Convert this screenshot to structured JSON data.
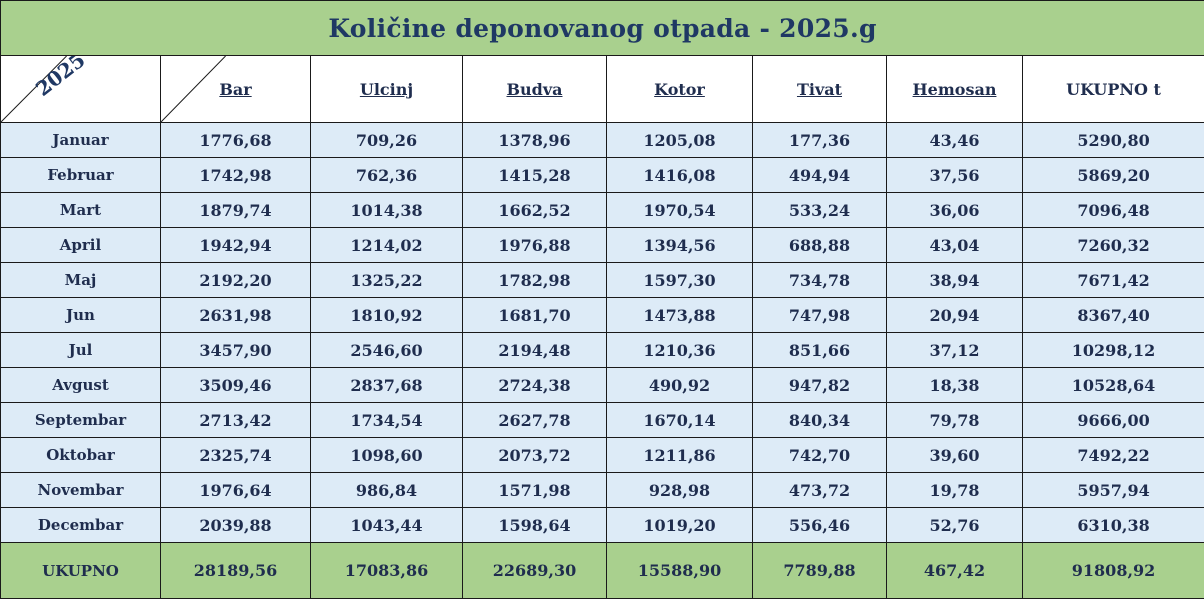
{
  "title": "Količine deponovanog otpada - 2025.g",
  "corner_label": "2025",
  "columns": [
    "Bar",
    "Ulcinj",
    "Budva",
    "Kotor",
    "Tivat",
    "Hemosan"
  ],
  "total_column": "UKUPNO t",
  "rows": [
    {
      "month": "Januar",
      "values": [
        "1776,68",
        "709,26",
        "1378,96",
        "1205,08",
        "177,36",
        "43,46",
        "5290,80"
      ]
    },
    {
      "month": "Februar",
      "values": [
        "1742,98",
        "762,36",
        "1415,28",
        "1416,08",
        "494,94",
        "37,56",
        "5869,20"
      ]
    },
    {
      "month": "Mart",
      "values": [
        "1879,74",
        "1014,38",
        "1662,52",
        "1970,54",
        "533,24",
        "36,06",
        "7096,48"
      ]
    },
    {
      "month": "April",
      "values": [
        "1942,94",
        "1214,02",
        "1976,88",
        "1394,56",
        "688,88",
        "43,04",
        "7260,32"
      ]
    },
    {
      "month": "Maj",
      "values": [
        "2192,20",
        "1325,22",
        "1782,98",
        "1597,30",
        "734,78",
        "38,94",
        "7671,42"
      ]
    },
    {
      "month": "Jun",
      "values": [
        "2631,98",
        "1810,92",
        "1681,70",
        "1473,88",
        "747,98",
        "20,94",
        "8367,40"
      ]
    },
    {
      "month": "Jul",
      "values": [
        "3457,90",
        "2546,60",
        "2194,48",
        "1210,36",
        "851,66",
        "37,12",
        "10298,12"
      ]
    },
    {
      "month": "Avgust",
      "values": [
        "3509,46",
        "2837,68",
        "2724,38",
        "490,92",
        "947,82",
        "18,38",
        "10528,64"
      ]
    },
    {
      "month": "Septembar",
      "values": [
        "2713,42",
        "1734,54",
        "2627,78",
        "1670,14",
        "840,34",
        "79,78",
        "9666,00"
      ]
    },
    {
      "month": "Oktobar",
      "values": [
        "2325,74",
        "1098,60",
        "2073,72",
        "1211,86",
        "742,70",
        "39,60",
        "7492,22"
      ]
    },
    {
      "month": "Novembar",
      "values": [
        "1976,64",
        "986,84",
        "1571,98",
        "928,98",
        "473,72",
        "19,78",
        "5957,94"
      ]
    },
    {
      "month": "Decembar",
      "values": [
        "2039,88",
        "1043,44",
        "1598,64",
        "1019,20",
        "556,46",
        "52,76",
        "6310,38"
      ]
    }
  ],
  "totals": {
    "label": "UKUPNO",
    "values": [
      "28189,56",
      "17083,86",
      "22689,30",
      "15588,90",
      "7789,88",
      "467,42",
      "91808,92"
    ]
  },
  "colors": {
    "title_bg": "#a9d08e",
    "row_bg": "#ddebf7",
    "text": "#1f2d4e"
  }
}
